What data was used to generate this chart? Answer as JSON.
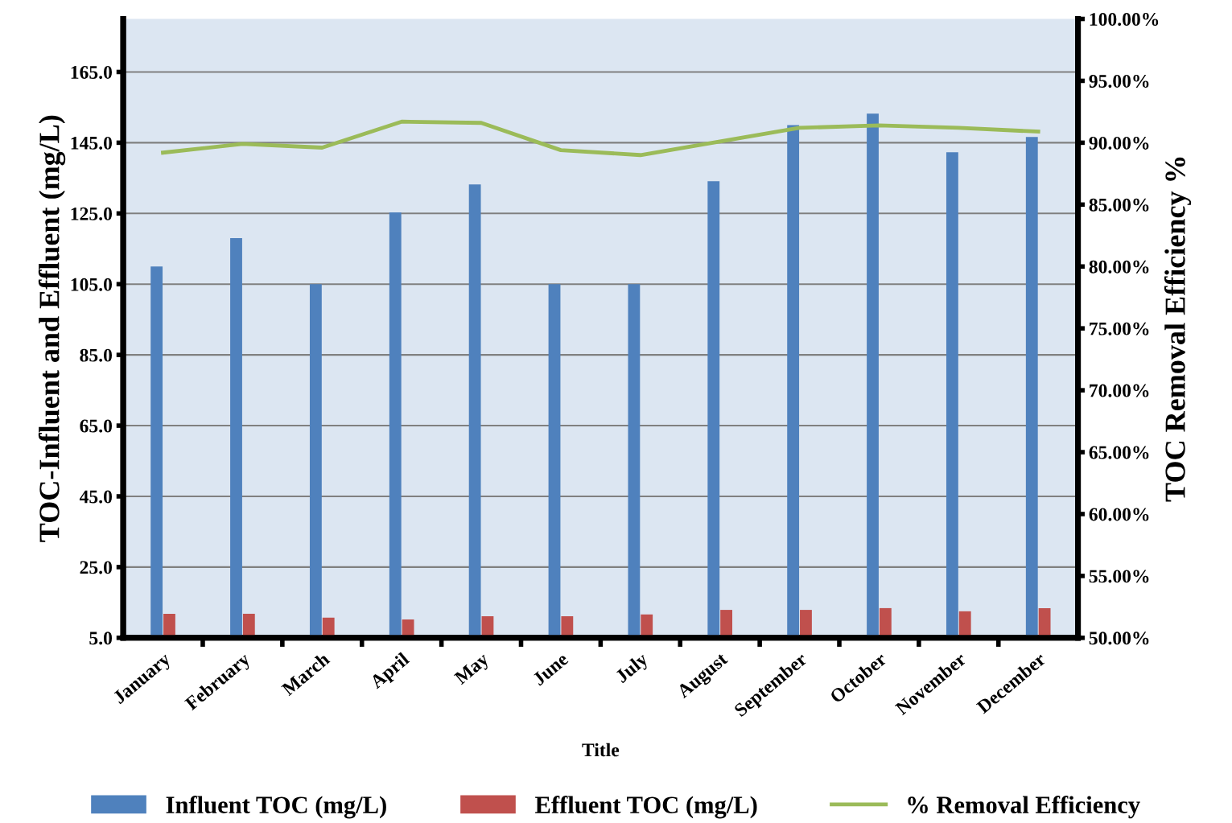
{
  "chart_data": {
    "type": "bar",
    "xlabel": "Title",
    "ylabel": "TOC-Influent and Effluent (mg/L)",
    "y2label": "TOC Removal Efficiency %",
    "categories": [
      "January",
      "February",
      "March",
      "April",
      "May",
      "June",
      "July",
      "August",
      "September",
      "October",
      "November",
      "December"
    ],
    "series": [
      {
        "name": "Influent TOC (mg/L)",
        "color": "#4f81bd",
        "values": [
          110,
          118,
          105,
          125.3,
          133.2,
          105,
          105,
          134.1,
          150,
          153.2,
          142.3,
          146.6
        ]
      },
      {
        "name": "Effluent TOC (mg/L)",
        "color": "#c0504d",
        "values": [
          11.8,
          11.8,
          10.7,
          10.2,
          11.1,
          11.1,
          11.6,
          12.9,
          12.9,
          13.4,
          12.5,
          13.4
        ]
      },
      {
        "name": "% Removal Efficiency",
        "type": "line",
        "axis": "y2",
        "color": "#9bbb59",
        "values": [
          89.2,
          89.9,
          89.6,
          91.7,
          91.6,
          89.4,
          89.0,
          90.1,
          91.2,
          91.4,
          91.2,
          90.9
        ]
      }
    ],
    "ylim": [
      5,
      180
    ],
    "yticks": [
      {
        "value": 5,
        "label": "5.0"
      },
      {
        "value": 25,
        "label": "25.0"
      },
      {
        "value": 45,
        "label": "45.0"
      },
      {
        "value": 65,
        "label": "65.0"
      },
      {
        "value": 85,
        "label": "85.0"
      },
      {
        "value": 105,
        "label": "105.0"
      },
      {
        "value": 125,
        "label": "125.0"
      },
      {
        "value": 145,
        "label": "145.0"
      },
      {
        "value": 165,
        "label": "165.0"
      }
    ],
    "y2lim": [
      50,
      100
    ],
    "y2ticks": [
      {
        "value": 50,
        "label": "50.00%"
      },
      {
        "value": 55,
        "label": "55.00%"
      },
      {
        "value": 60,
        "label": "60.00%"
      },
      {
        "value": 65,
        "label": "65.00%"
      },
      {
        "value": 70,
        "label": "70.00%"
      },
      {
        "value": 75,
        "label": "75.00%"
      },
      {
        "value": 80,
        "label": "80.00%"
      },
      {
        "value": 85,
        "label": "85.00%"
      },
      {
        "value": 90,
        "label": "90.00%"
      },
      {
        "value": 95,
        "label": "95.00%"
      },
      {
        "value": 100,
        "label": "100.00%"
      }
    ],
    "grid": "y",
    "legend": "bottom"
  }
}
